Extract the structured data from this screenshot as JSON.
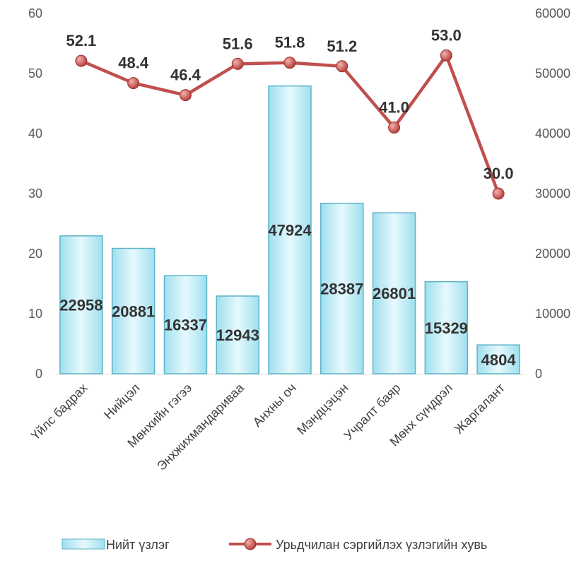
{
  "chart_data": {
    "type": "bar",
    "categories": [
      "Үйлс бадрах",
      "Нийцэл",
      "Мөнхийн гэгээ",
      "Энхжихмандариваа",
      "Анхны оч",
      "Мэндцэцэн",
      "Учралт баяр",
      "Мөнх сүндрэл",
      "Жаргалант"
    ],
    "series": [
      {
        "name": "Нийт үзлэг",
        "type": "bar",
        "axis": "right",
        "values": [
          22958,
          20881,
          16337,
          12943,
          47924,
          28387,
          26801,
          15329,
          4804
        ],
        "labels": [
          "22958",
          "20881",
          "16337",
          "12943",
          "47924",
          "28387",
          "26801",
          "15329",
          "4804"
        ]
      },
      {
        "name": "Урьдчилан сэргийлэх үзлэгийн хувь",
        "type": "line",
        "axis": "left",
        "values": [
          52.1,
          48.4,
          46.4,
          51.6,
          51.8,
          51.2,
          41.0,
          53.0,
          30.0
        ],
        "labels": [
          "52.1",
          "48.4",
          "46.4",
          "51.6",
          "51.8",
          "51.2",
          "41.0",
          "53.0",
          "30.0"
        ]
      }
    ],
    "y_left": {
      "ylim": [
        0,
        60
      ],
      "ticks": [
        "0",
        "10",
        "20",
        "30",
        "40",
        "50",
        "60"
      ]
    },
    "y_right": {
      "ylim": [
        0,
        60000
      ],
      "ticks": [
        "0",
        "10000",
        "20000",
        "30000",
        "40000",
        "50000",
        "60000"
      ]
    },
    "grid": false,
    "legend_position": "bottom",
    "colors": {
      "bar_fill": "#bfeef7",
      "bar_edge": "#5fb3c8",
      "line": "#c0504d",
      "marker": "#c0504d"
    }
  }
}
